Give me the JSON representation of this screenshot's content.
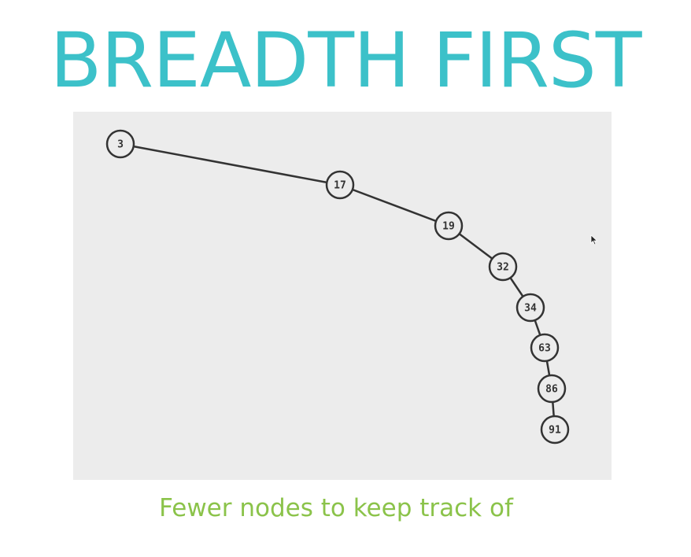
{
  "slide": {
    "title": "BREADTH FIRST",
    "subtitle": "Fewer nodes to keep track of"
  },
  "diagram": {
    "nodes": [
      {
        "id": "n3",
        "label": "3"
      },
      {
        "id": "n17",
        "label": "17"
      },
      {
        "id": "n19",
        "label": "19"
      },
      {
        "id": "n32",
        "label": "32"
      },
      {
        "id": "n34",
        "label": "34"
      },
      {
        "id": "n63",
        "label": "63"
      },
      {
        "id": "n86",
        "label": "86"
      },
      {
        "id": "n91",
        "label": "91"
      }
    ],
    "edges": [
      [
        "n3",
        "n17"
      ],
      [
        "n17",
        "n19"
      ],
      [
        "n19",
        "n32"
      ],
      [
        "n32",
        "n34"
      ],
      [
        "n34",
        "n63"
      ],
      [
        "n63",
        "n86"
      ],
      [
        "n86",
        "n91"
      ]
    ]
  },
  "colors": {
    "title": "#3cc1c9",
    "subtitle": "#8bc34a",
    "panel_background": "#ececec",
    "node_fill": "#ececec",
    "node_stroke": "#333333",
    "edge": "#333333"
  },
  "icons": {
    "cursor": "mouse-pointer-icon"
  }
}
